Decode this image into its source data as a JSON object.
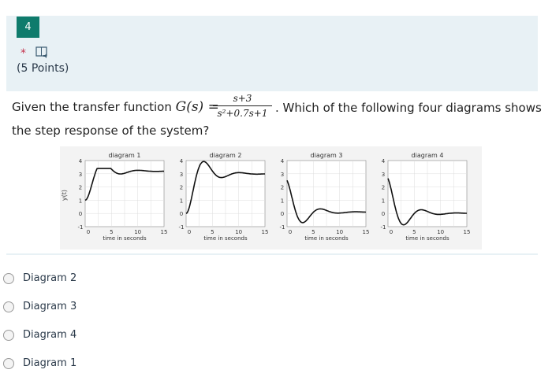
{
  "question": {
    "number": "4",
    "required_mark": "*",
    "points": "(5 Points)",
    "text_before": "Given the transfer function ",
    "math_lhs": "G(s) =",
    "frac_num": "s+3",
    "frac_den": "s²+0.7s+1",
    "text_after": ". Which of the following four diagrams shows",
    "text_line2": "the step response of the system?"
  },
  "figure": {
    "ylabel": "y(t)",
    "xlabel": "time in seconds",
    "yticks": [
      "4",
      "3",
      "2",
      "1",
      "0",
      "-1"
    ],
    "xticks": [
      "0",
      "5",
      "10",
      "15"
    ],
    "panels": [
      {
        "title": "diagram 1",
        "kind": "overshoot"
      },
      {
        "title": "diagram 2",
        "kind": "overshoot"
      },
      {
        "title": "diagram 3",
        "kind": "undershoot"
      },
      {
        "title": "diagram 4",
        "kind": "undershoot"
      }
    ]
  },
  "choices": [
    "Diagram 2",
    "Diagram 3",
    "Diagram 4",
    "Diagram 1"
  ]
}
